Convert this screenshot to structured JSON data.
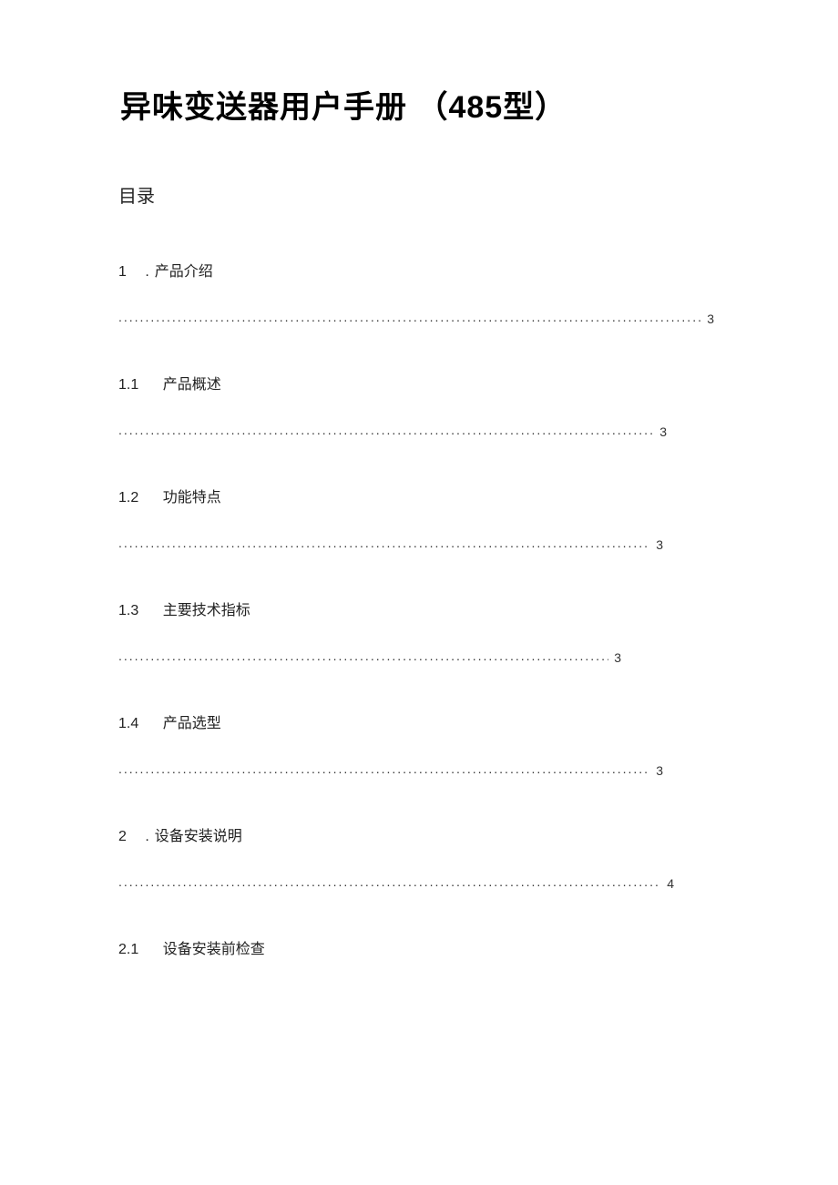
{
  "document": {
    "title_part1": "异味变送器用户手册 （",
    "title_bold": "485",
    "title_part2": "型）",
    "toc_label": "目录",
    "entries": [
      {
        "num": "1",
        "sep": " .",
        "text": "产品介绍",
        "page": "3",
        "widthClass": "w1",
        "hasDots": true
      },
      {
        "num": "1.1",
        "sep": "  ",
        "text": "产品概述",
        "page": "3",
        "widthClass": "w2",
        "hasDots": true
      },
      {
        "num": "1.2",
        "sep": "  ",
        "text": "功能特点",
        "page": "3",
        "widthClass": "w3",
        "hasDots": true
      },
      {
        "num": "1.3",
        "sep": "  ",
        "text": "主要技术指标",
        "page": "3",
        "widthClass": "w4",
        "hasDots": true
      },
      {
        "num": "1.4",
        "sep": "  ",
        "text": "产品选型",
        "page": "3",
        "widthClass": "w5",
        "hasDots": true
      },
      {
        "num": "2",
        "sep": " .",
        "text": "设备安装说明",
        "page": "4",
        "widthClass": "w6",
        "hasDots": true
      },
      {
        "num": "2.1",
        "sep": "  ",
        "text": "设备安装前检查",
        "page": "",
        "widthClass": "",
        "hasDots": false
      }
    ]
  },
  "style": {
    "background_color": "#ffffff",
    "text_color": "#000000",
    "title_fontsize": 34,
    "toc_label_fontsize": 20,
    "heading_fontsize": 16,
    "dots_fontsize": 14
  }
}
